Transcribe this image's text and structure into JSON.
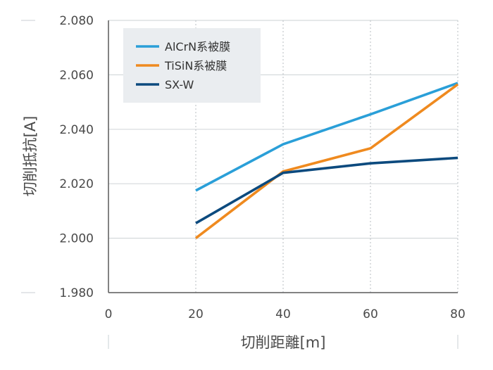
{
  "chart_data": {
    "type": "line",
    "x": [
      20,
      40,
      60,
      80
    ],
    "series": [
      {
        "name": "AlCrN系被膜",
        "values": [
          2.0175,
          2.0345,
          2.0455,
          2.057
        ],
        "color": "#2a9fd8"
      },
      {
        "name": "TiSiN系被膜",
        "values": [
          2.0,
          2.0245,
          2.033,
          2.0565
        ],
        "color": "#ef8a1f"
      },
      {
        "name": "SX-W",
        "values": [
          2.0055,
          2.024,
          2.0275,
          2.0295
        ],
        "color": "#0c4a7e"
      }
    ],
    "xlabel": "切削距離[m]",
    "ylabel": "切削抵抗[A]",
    "xlim": [
      0,
      80
    ],
    "ylim": [
      1.98,
      2.08
    ],
    "xticks": [
      0,
      20,
      40,
      60,
      80
    ],
    "xtick_labels": [
      "0",
      "20",
      "40",
      "60",
      "80"
    ],
    "yticks": [
      1.98,
      2.0,
      2.02,
      2.04,
      2.06,
      2.08
    ],
    "ytick_labels": [
      "1.980",
      "2.000",
      "2.020",
      "2.040",
      "2.060",
      "2.080"
    ],
    "grid": {
      "horizontal": "solid",
      "vertical": "dotted"
    },
    "legend_position": "top-left"
  }
}
